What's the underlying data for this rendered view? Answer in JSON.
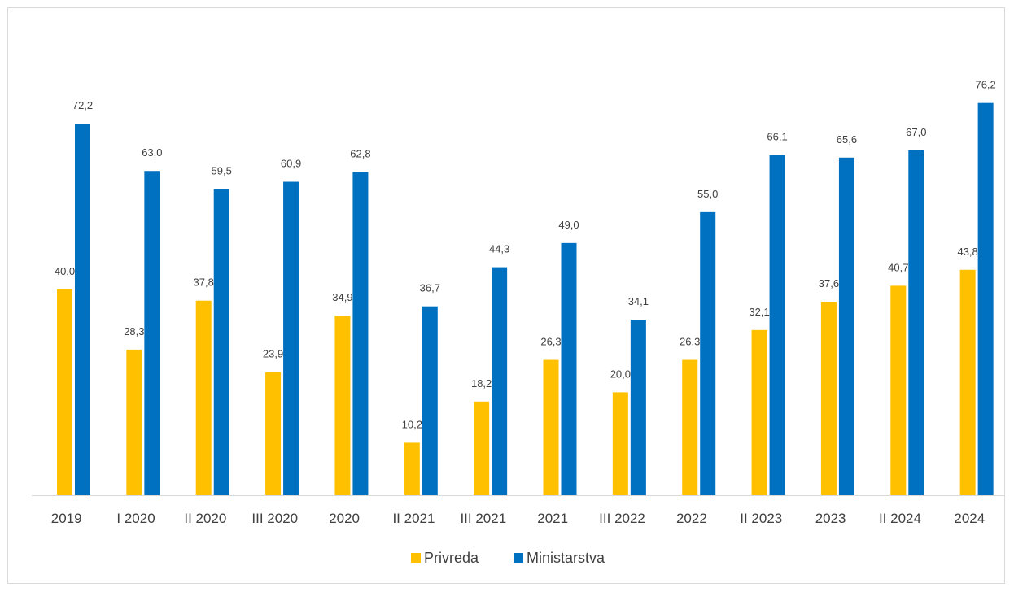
{
  "chart_data": {
    "type": "bar",
    "categories": [
      "2019",
      "I 2020",
      "II 2020",
      "III 2020",
      "2020",
      "II 2021",
      "III 2021",
      "2021",
      "III 2022",
      "2022",
      "II 2023",
      "2023",
      "II 2024",
      "2024"
    ],
    "series": [
      {
        "name": "Privreda",
        "color": "#FFC000",
        "values": [
          40.0,
          28.3,
          37.8,
          23.9,
          34.9,
          10.2,
          18.2,
          26.3,
          20.0,
          26.3,
          32.1,
          37.6,
          40.7,
          43.8
        ],
        "labels": [
          "40,0",
          "28,3",
          "37,8",
          "23,9",
          "34,9",
          "10,2",
          "18,2",
          "26,3",
          "20,0",
          "26,3",
          "32,1",
          "37,6",
          "40,7",
          "43,8"
        ]
      },
      {
        "name": "Ministarstva",
        "color": "#0070C0",
        "values": [
          72.2,
          63.0,
          59.5,
          60.9,
          62.8,
          36.7,
          44.3,
          49.0,
          34.1,
          55.0,
          66.1,
          65.6,
          67.0,
          76.2
        ],
        "labels": [
          "72,2",
          "63,0",
          "59,5",
          "60,9",
          "62,8",
          "36,7",
          "44,3",
          "49,0",
          "34,1",
          "55,0",
          "66,1",
          "65,6",
          "67,0",
          "76,2"
        ]
      }
    ],
    "title": "",
    "xlabel": "",
    "ylabel": "",
    "ylim": [
      0,
      80
    ],
    "grid": false,
    "legend": "bottom"
  }
}
